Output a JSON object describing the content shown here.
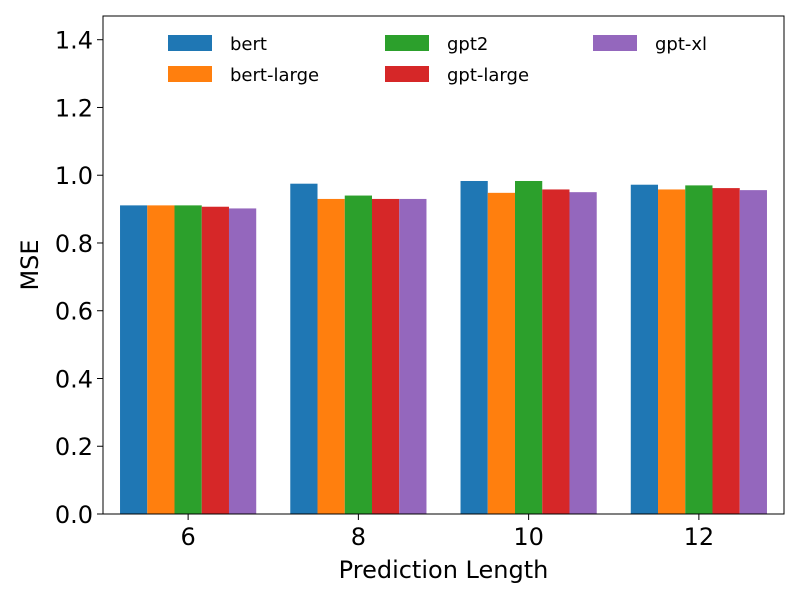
{
  "chart_data": {
    "type": "bar",
    "title": "",
    "xlabel": "Prediction Length",
    "ylabel": "MSE",
    "categories": [
      "6",
      "8",
      "10",
      "12"
    ],
    "ylim": [
      0,
      1.47
    ],
    "yticks": [
      "0.0",
      "0.2",
      "0.4",
      "0.6",
      "0.8",
      "1.0",
      "1.2",
      "1.4"
    ],
    "grid": false,
    "legend_position": "top",
    "series": [
      {
        "name": "bert",
        "color": "#1f77b4",
        "values": [
          0.911,
          0.975,
          0.983,
          0.972
        ]
      },
      {
        "name": "bert-large",
        "color": "#ff7f0e",
        "values": [
          0.911,
          0.93,
          0.948,
          0.958
        ]
      },
      {
        "name": "gpt2",
        "color": "#2ca02c",
        "values": [
          0.911,
          0.94,
          0.983,
          0.97
        ]
      },
      {
        "name": "gpt-large",
        "color": "#d62728",
        "values": [
          0.907,
          0.93,
          0.958,
          0.962
        ]
      },
      {
        "name": "gpt-xl",
        "color": "#9467bd",
        "values": [
          0.902,
          0.93,
          0.95,
          0.956
        ]
      }
    ]
  }
}
